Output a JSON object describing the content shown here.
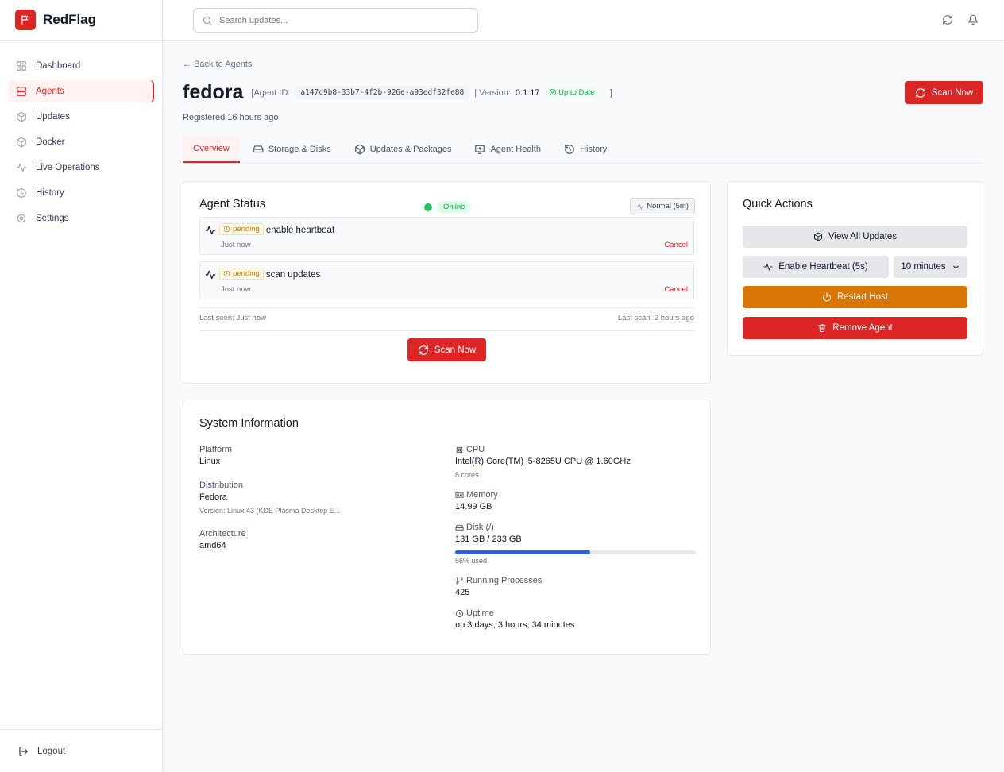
{
  "app": {
    "name": "RedFlag",
    "brand_color": "#dc2626"
  },
  "sidebar": {
    "items": [
      {
        "label": "Dashboard",
        "icon": "grid-icon"
      },
      {
        "label": "Agents",
        "icon": "server-icon",
        "active": true
      },
      {
        "label": "Updates",
        "icon": "package-icon"
      },
      {
        "label": "Docker",
        "icon": "box-icon"
      },
      {
        "label": "Live Operations",
        "icon": "activity-icon"
      },
      {
        "label": "History",
        "icon": "history-icon"
      },
      {
        "label": "Settings",
        "icon": "gear-icon"
      }
    ],
    "logout": "Logout"
  },
  "header": {
    "search_placeholder": "Search updates..."
  },
  "agent": {
    "back": "← Back to Agents",
    "name": "fedora",
    "id_label": "[Agent ID:",
    "id": "a147c9b8-33b7-4f2b-926e-a93edf32fe88",
    "version_label": "| Version:",
    "version": "0.1.17",
    "version_status": "Up to Date",
    "close_bracket": "]",
    "registered": "Registered 16 hours ago",
    "scan_now": "Scan Now"
  },
  "tabs": [
    {
      "label": "Overview",
      "active": true
    },
    {
      "label": "Storage & Disks"
    },
    {
      "label": "Updates & Packages"
    },
    {
      "label": "Agent Health"
    },
    {
      "label": "History"
    }
  ],
  "status": {
    "title": "Agent Status",
    "online": "Online",
    "heartbeat": "Normal (5m)",
    "commands": [
      {
        "status": "pending",
        "name": "enable heartbeat",
        "time": "Just now",
        "action": "Cancel"
      },
      {
        "status": "pending",
        "name": "scan updates",
        "time": "Just now",
        "action": "Cancel"
      }
    ],
    "last_seen": "Last seen: Just now",
    "last_scan": "Last scan: 2 hours ago",
    "scan_now": "Scan Now"
  },
  "system": {
    "title": "System Information",
    "platform_label": "Platform",
    "platform": "Linux",
    "distribution_label": "Distribution",
    "distribution": "Fedora",
    "distribution_version": "Version: Linux 43 (KDE Plasma Desktop E...",
    "arch_label": "Architecture",
    "arch": "amd64",
    "cpu_label": "CPU",
    "cpu": "Intel(R) Core(TM) i5-8265U CPU @ 1.60GHz",
    "cpu_cores": "8 cores",
    "memory_label": "Memory",
    "memory": "14.99 GB",
    "disk_label": "Disk (/)",
    "disk": "131 GB / 233 GB",
    "disk_used_percent": 56,
    "disk_used": "56% used",
    "proc_label": "Running Processes",
    "proc": "425",
    "uptime_label": "Uptime",
    "uptime": "up 3 days, 3 hours, 34 minutes"
  },
  "quick_actions": {
    "title": "Quick Actions",
    "view_updates": "View All Updates",
    "heartbeat": "Enable Heartbeat (5s)",
    "duration": "10 minutes",
    "restart": "Restart Host",
    "remove": "Remove Agent",
    "restart_color": "#d97706",
    "remove_color": "#dc2626"
  }
}
